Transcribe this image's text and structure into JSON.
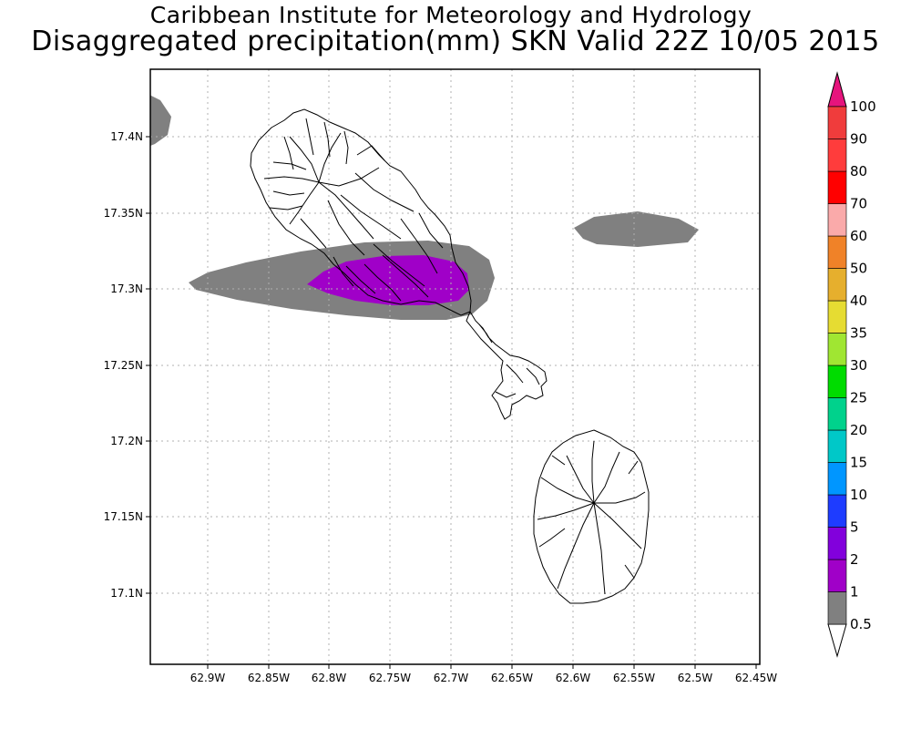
{
  "title_line1": "Caribbean Institute for Meteorology and Hydrology",
  "title_line2": "Disaggregated precipitation(mm) SKN Valid 22Z 10/05 2015",
  "map": {
    "x_ticks": [
      "62.9W",
      "62.85W",
      "62.8W",
      "62.75W",
      "62.7W",
      "62.65W",
      "62.6W",
      "62.55W",
      "62.5W",
      "62.45W"
    ],
    "y_ticks": [
      "17.4N",
      "17.35N",
      "17.3N",
      "17.25N",
      "17.2N",
      "17.15N",
      "17.1N"
    ],
    "lon_range": [
      "62.94W",
      "62.44W"
    ],
    "lat_range": [
      "17.05N",
      "17.44N"
    ],
    "grid": "dotted",
    "land_outline_color": "#000000",
    "islands": [
      "St Kitts",
      "Nevis"
    ]
  },
  "precip_areas": [
    {
      "band": "0.5-1",
      "color": "#808080",
      "region": "northwest corner (west edge near 17.41N)"
    },
    {
      "band": "0.5-1",
      "color": "#808080",
      "region": "ocean east of St Kitts near 62.55W 17.34N"
    },
    {
      "band": "0.5-1",
      "color": "#808080",
      "region": "elongated band 62.92W-62.67W around 17.30N"
    },
    {
      "band": "1-2",
      "color": "#a000c8",
      "region": "southern St Kitts 62.82W-62.70W around 17.305N"
    }
  ],
  "colorbar": {
    "labels": [
      "0.5",
      "1",
      "2",
      "5",
      "10",
      "15",
      "20",
      "25",
      "30",
      "35",
      "40",
      "50",
      "60",
      "70",
      "80",
      "90",
      "100"
    ],
    "colors": [
      "#808080",
      "#a000c8",
      "#8200dc",
      "#1e3cff",
      "#0096ff",
      "#00c8c8",
      "#00d28c",
      "#00dc00",
      "#a0e632",
      "#e6dc32",
      "#e6af2d",
      "#f08228",
      "#faaaaa",
      "#ff0000",
      "#ff3c3c",
      "#f03c3c"
    ],
    "under_color": "#ffffff",
    "over_color": "#e6147d"
  }
}
